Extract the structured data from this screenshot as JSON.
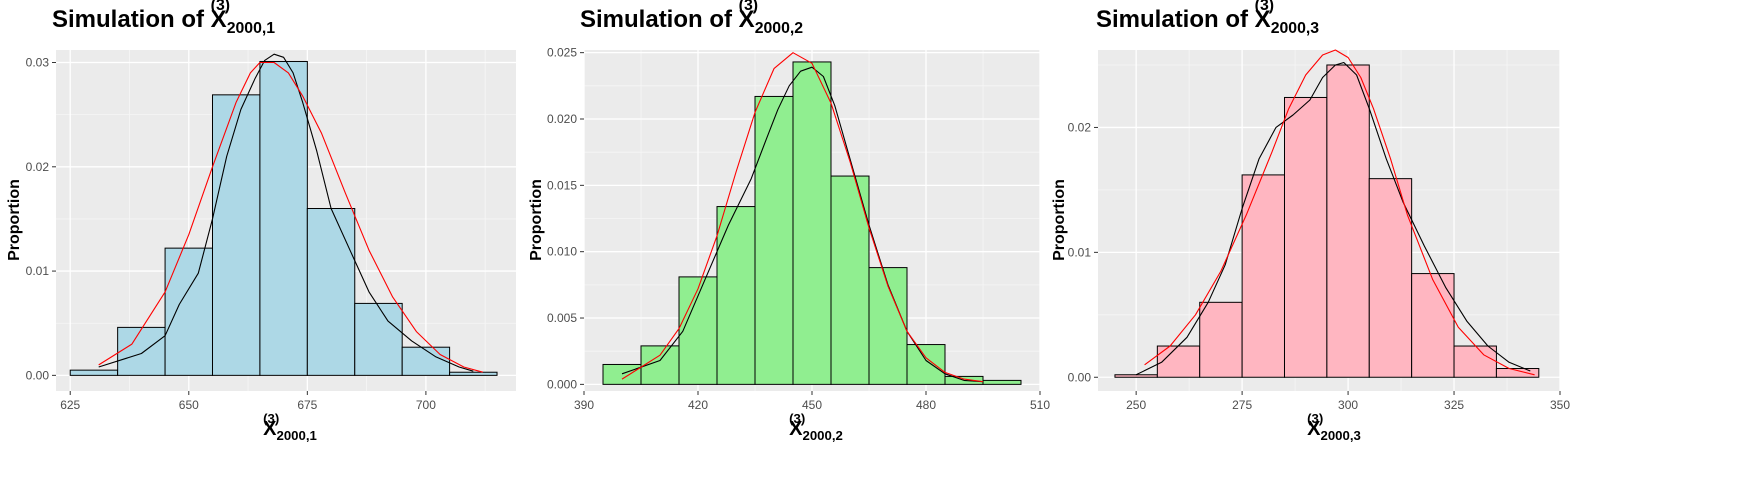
{
  "charts": [
    {
      "title_prefix": "Simulation of",
      "var_base": "X",
      "var_sup": "(3)",
      "var_sub": "2000,1",
      "ylabel": "Proportion",
      "colors": {
        "fill": "#add8e6",
        "density": "#000000",
        "normal": "#ff0000",
        "panel_bg": "#ebebeb"
      }
    },
    {
      "title_prefix": "Simulation of",
      "var_base": "X",
      "var_sup": "(3)",
      "var_sub": "2000,2",
      "ylabel": "Proportion",
      "colors": {
        "fill": "#90ee90",
        "density": "#000000",
        "normal": "#ff0000",
        "panel_bg": "#ebebeb"
      }
    },
    {
      "title_prefix": "Simulation of",
      "var_base": "X",
      "var_sup": "(3)",
      "var_sub": "2000,3",
      "ylabel": "Proportion",
      "colors": {
        "fill": "#ffb6c1",
        "density": "#000000",
        "normal": "#ff0000",
        "panel_bg": "#ebebeb"
      }
    }
  ],
  "chart_data": [
    {
      "type": "bar",
      "bar_style": "histogram",
      "title": "Simulation of X(3)2000,1",
      "xlabel": "X(3)2000,1",
      "ylabel": "Proportion",
      "xlim": [
        622,
        719
      ],
      "ylim": [
        -0.0015,
        0.0312
      ],
      "x_ticks": [
        625,
        650,
        675,
        700
      ],
      "y_ticks": [
        0.0,
        0.01,
        0.02,
        0.03
      ],
      "y_tick_labels": [
        "0.00",
        "0.01",
        "0.02",
        "0.03"
      ],
      "bin_width": 10,
      "bin_starts": [
        625,
        635,
        645,
        655,
        665,
        675,
        685,
        695,
        705
      ],
      "values": [
        0.0005,
        0.0046,
        0.0122,
        0.0269,
        0.0301,
        0.016,
        0.0069,
        0.0027,
        0.0003
      ],
      "series": [
        {
          "name": "density",
          "x": [
            631,
            640,
            645,
            648,
            652,
            655,
            658,
            661,
            664,
            666,
            668,
            670,
            672,
            674,
            677,
            680,
            684,
            688,
            692,
            697,
            702,
            707,
            710
          ],
          "y": [
            0.0008,
            0.0021,
            0.0038,
            0.0068,
            0.0098,
            0.015,
            0.021,
            0.0255,
            0.0285,
            0.0302,
            0.0308,
            0.0305,
            0.029,
            0.0262,
            0.0215,
            0.016,
            0.012,
            0.008,
            0.0052,
            0.0033,
            0.0018,
            0.0008,
            0.0004
          ]
        },
        {
          "name": "normal",
          "x": [
            631,
            638,
            645,
            650,
            655,
            660,
            663,
            665,
            668,
            671,
            674,
            678,
            683,
            688,
            693,
            698,
            703,
            708,
            712
          ],
          "y": [
            0.001,
            0.003,
            0.008,
            0.0135,
            0.02,
            0.0262,
            0.029,
            0.03,
            0.03,
            0.029,
            0.0268,
            0.0232,
            0.0175,
            0.012,
            0.0075,
            0.0042,
            0.002,
            0.0008,
            0.0003
          ]
        }
      ]
    },
    {
      "type": "bar",
      "bar_style": "histogram",
      "title": "Simulation of X(3)2000,2",
      "xlabel": "X(3)2000,2",
      "ylabel": "Proportion",
      "xlim": [
        390,
        510
      ],
      "ylim": [
        -0.0005,
        0.0252
      ],
      "x_ticks": [
        390,
        420,
        450,
        480,
        510
      ],
      "y_ticks": [
        0.0,
        0.005,
        0.01,
        0.015,
        0.02,
        0.025
      ],
      "y_tick_labels": [
        "0.000",
        "0.005",
        "0.010",
        "0.015",
        "0.020",
        "0.025"
      ],
      "bin_width": 10,
      "bin_starts": [
        395,
        405,
        415,
        425,
        435,
        445,
        455,
        465,
        475,
        485,
        495
      ],
      "values": [
        0.0015,
        0.0029,
        0.0081,
        0.0134,
        0.0217,
        0.0243,
        0.0157,
        0.0088,
        0.003,
        0.0006,
        0.0003
      ],
      "series": [
        {
          "name": "density",
          "x": [
            400,
            410,
            416,
            422,
            428,
            434,
            438,
            441,
            444,
            447,
            450,
            453,
            456,
            460,
            465,
            470,
            475,
            480,
            485,
            490,
            495
          ],
          "y": [
            0.0008,
            0.0018,
            0.004,
            0.008,
            0.012,
            0.0155,
            0.0185,
            0.0207,
            0.0225,
            0.0236,
            0.0239,
            0.0232,
            0.021,
            0.017,
            0.012,
            0.0075,
            0.004,
            0.0018,
            0.0008,
            0.0003,
            0.0002
          ]
        },
        {
          "name": "normal",
          "x": [
            400,
            410,
            415,
            420,
            425,
            430,
            435,
            440,
            445,
            450,
            455,
            460,
            465,
            470,
            475,
            480,
            485,
            490,
            495
          ],
          "y": [
            0.0004,
            0.0022,
            0.0042,
            0.0072,
            0.0112,
            0.016,
            0.0205,
            0.0238,
            0.025,
            0.0242,
            0.0212,
            0.0168,
            0.0118,
            0.0074,
            0.004,
            0.002,
            0.0009,
            0.0004,
            0.0002
          ]
        }
      ]
    },
    {
      "type": "bar",
      "bar_style": "histogram",
      "title": "Simulation of X(3)2000,3",
      "xlabel": "X(3)2000,3",
      "ylabel": "Proportion",
      "xlim": [
        241,
        350
      ],
      "ylim": [
        -0.0011,
        0.0262
      ],
      "x_ticks": [
        250,
        275,
        300,
        325,
        350
      ],
      "y_ticks": [
        0.0,
        0.01,
        0.02
      ],
      "y_tick_labels": [
        "0.00",
        "0.01",
        "0.02"
      ],
      "bin_width": 10,
      "bin_starts": [
        245,
        255,
        265,
        275,
        285,
        295,
        305,
        315,
        325,
        335
      ],
      "values": [
        0.0002,
        0.0025,
        0.006,
        0.0162,
        0.0224,
        0.025,
        0.0159,
        0.0083,
        0.0025,
        0.0007
      ],
      "series": [
        {
          "name": "density",
          "x": [
            250,
            256,
            262,
            267,
            271,
            275,
            279,
            283,
            287,
            291,
            294,
            297,
            299,
            302,
            305,
            309,
            313,
            318,
            323,
            328,
            333,
            338,
            343
          ],
          "y": [
            0.0002,
            0.0012,
            0.0032,
            0.006,
            0.009,
            0.0135,
            0.0175,
            0.02,
            0.021,
            0.0222,
            0.024,
            0.025,
            0.0252,
            0.0242,
            0.0215,
            0.0175,
            0.014,
            0.0105,
            0.0072,
            0.0045,
            0.0025,
            0.0012,
            0.0005
          ]
        },
        {
          "name": "normal",
          "x": [
            252,
            258,
            264,
            270,
            276,
            282,
            286,
            290,
            294,
            297,
            300,
            303,
            306,
            310,
            314,
            320,
            326,
            332,
            338,
            344
          ],
          "y": [
            0.001,
            0.0025,
            0.005,
            0.0085,
            0.013,
            0.018,
            0.0215,
            0.0242,
            0.0258,
            0.0262,
            0.0256,
            0.024,
            0.0215,
            0.0175,
            0.013,
            0.0078,
            0.004,
            0.0018,
            0.0007,
            0.0002
          ]
        }
      ]
    }
  ]
}
